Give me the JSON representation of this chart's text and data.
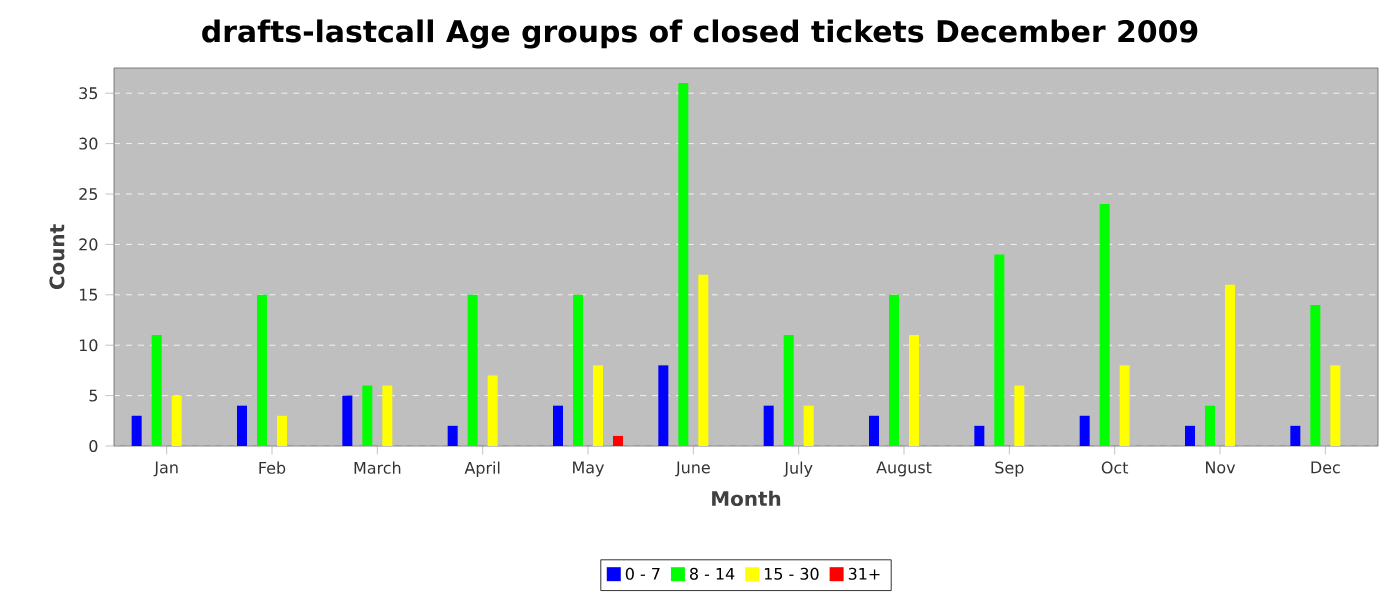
{
  "chart_data": {
    "type": "bar",
    "title": "drafts-lastcall Age groups of closed tickets December 2009",
    "xlabel": "Month",
    "ylabel": "Count",
    "categories": [
      "Jan",
      "Feb",
      "March",
      "April",
      "May",
      "June",
      "July",
      "August",
      "Sep",
      "Oct",
      "Nov",
      "Dec"
    ],
    "series": [
      {
        "name": "0 - 7",
        "color": "#0000ff",
        "values": [
          3,
          4,
          5,
          2,
          4,
          8,
          4,
          3,
          2,
          3,
          2,
          2
        ]
      },
      {
        "name": "8 - 14",
        "color": "#00ff00",
        "values": [
          11,
          15,
          6,
          15,
          15,
          36,
          11,
          15,
          19,
          24,
          4,
          14
        ]
      },
      {
        "name": "15 - 30",
        "color": "#ffff00",
        "values": [
          5,
          3,
          6,
          7,
          8,
          17,
          4,
          11,
          6,
          8,
          16,
          8
        ]
      },
      {
        "name": "31+",
        "color": "#ff0000",
        "values": [
          null,
          null,
          null,
          null,
          1,
          null,
          null,
          null,
          null,
          null,
          null,
          null
        ]
      }
    ],
    "ylim": [
      0,
      37.5
    ],
    "yticks": [
      0,
      5,
      10,
      15,
      20,
      25,
      30,
      35
    ],
    "grid": "y",
    "legend": "bottom"
  }
}
